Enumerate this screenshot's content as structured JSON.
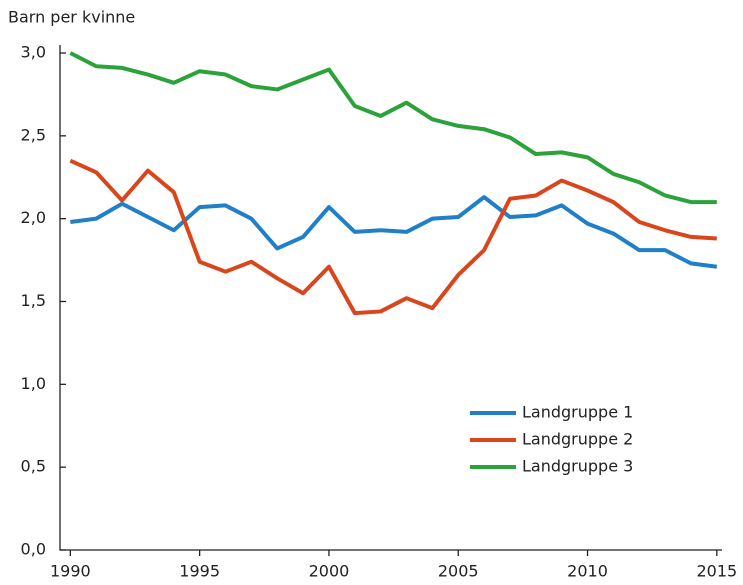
{
  "chart_data": {
    "type": "line",
    "ylabel": "Barn per kvinne",
    "x": [
      1990,
      1991,
      1992,
      1993,
      1994,
      1995,
      1996,
      1997,
      1998,
      1999,
      2000,
      2001,
      2002,
      2003,
      2004,
      2005,
      2006,
      2007,
      2008,
      2009,
      2010,
      2011,
      2012,
      2013,
      2014,
      2015
    ],
    "series": [
      {
        "name": "Landgruppe 1",
        "color": "#1f7fc8",
        "values": [
          1.98,
          2.0,
          2.09,
          2.01,
          1.93,
          2.07,
          2.08,
          2.0,
          1.82,
          1.89,
          2.07,
          1.92,
          1.93,
          1.92,
          2.0,
          2.01,
          2.13,
          2.01,
          2.02,
          2.08,
          1.97,
          1.91,
          1.81,
          1.81,
          1.73,
          1.71
        ]
      },
      {
        "name": "Landgruppe 2",
        "color": "#d9461b",
        "values": [
          2.35,
          2.28,
          2.11,
          2.29,
          2.16,
          1.74,
          1.68,
          1.74,
          1.64,
          1.55,
          1.71,
          1.43,
          1.44,
          1.52,
          1.46,
          1.66,
          1.81,
          2.12,
          2.14,
          2.23,
          2.17,
          2.1,
          1.98,
          1.93,
          1.89,
          1.88
        ]
      },
      {
        "name": "Landgruppe 3",
        "color": "#2ba33a",
        "values": [
          3.0,
          2.92,
          2.91,
          2.87,
          2.82,
          2.89,
          2.87,
          2.8,
          2.78,
          2.84,
          2.9,
          2.68,
          2.62,
          2.7,
          2.6,
          2.56,
          2.54,
          2.49,
          2.39,
          2.4,
          2.37,
          2.27,
          2.22,
          2.14,
          2.1,
          2.1
        ]
      }
    ],
    "xlim": [
      1989.6,
      2015.2
    ],
    "xticks": [
      1990,
      1995,
      2000,
      2005,
      2010,
      2015
    ],
    "ylim": [
      0,
      3
    ],
    "yticks": [
      {
        "value": 0,
        "label": "0,0"
      },
      {
        "value": 0.5,
        "label": "0,5"
      },
      {
        "value": 1,
        "label": "1,0"
      },
      {
        "value": 1.5,
        "label": "1,5"
      },
      {
        "value": 2,
        "label": "2,0"
      },
      {
        "value": 2.5,
        "label": "2,5"
      },
      {
        "value": 3,
        "label": "3,0"
      }
    ],
    "grid": false,
    "legend": "lower right"
  }
}
